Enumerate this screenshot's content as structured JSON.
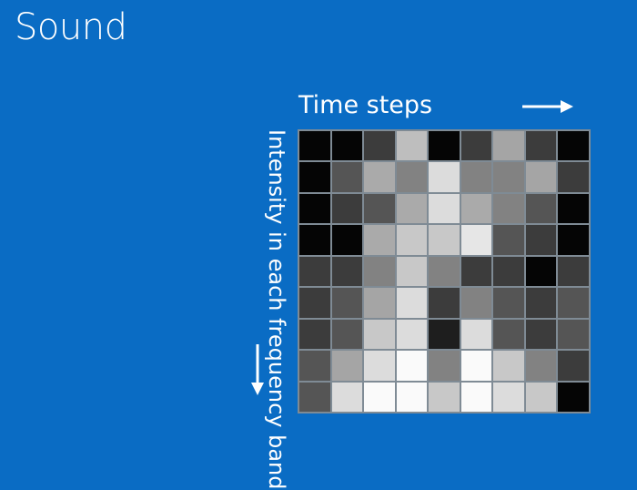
{
  "slide": {
    "title": "Sound"
  },
  "labels": {
    "time_axis": "Time steps",
    "frequency_axis": "Intensity in each frequency band"
  },
  "colors": {
    "background": "#0a6cc4",
    "text": "#ffffff",
    "grid_line": "#7f8b95"
  },
  "icons": {
    "right_arrow": "arrow-right-icon",
    "down_arrow": "arrow-down-icon"
  },
  "spectrogram": {
    "rows": 9,
    "columns": 9,
    "intensity_scale": "0 = black, 255 = white",
    "intensities": [
      [
        5,
        5,
        60,
        190,
        5,
        60,
        165,
        60,
        5
      ],
      [
        5,
        85,
        170,
        130,
        220,
        130,
        130,
        165,
        60
      ],
      [
        5,
        60,
        85,
        170,
        220,
        170,
        130,
        85,
        5
      ],
      [
        5,
        5,
        170,
        200,
        200,
        230,
        85,
        60,
        5
      ],
      [
        60,
        60,
        130,
        200,
        130,
        60,
        60,
        5,
        60
      ],
      [
        60,
        85,
        165,
        220,
        60,
        130,
        85,
        60,
        85
      ],
      [
        60,
        85,
        200,
        220,
        30,
        220,
        85,
        60,
        85
      ],
      [
        85,
        165,
        220,
        250,
        130,
        250,
        200,
        130,
        60
      ],
      [
        85,
        220,
        250,
        250,
        200,
        250,
        220,
        200,
        5
      ]
    ]
  }
}
